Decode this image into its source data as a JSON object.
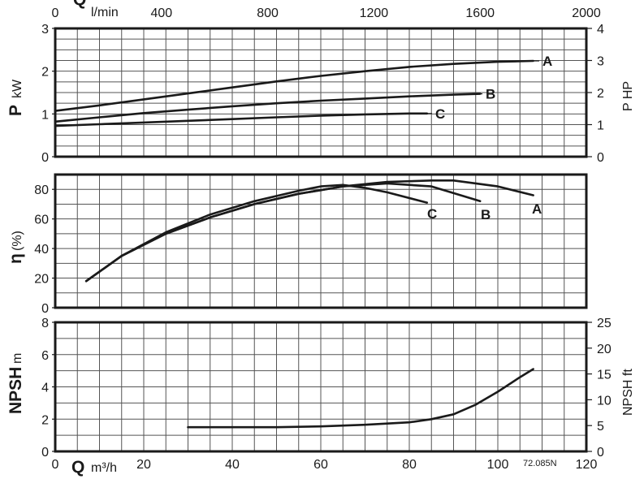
{
  "chart_data": [
    {
      "type": "line",
      "id": "power",
      "ylabel_symbol": "P",
      "ylabel_unit": "kW",
      "ylim": [
        0,
        3
      ],
      "yticks": [
        "0",
        "1",
        "2",
        "3"
      ],
      "right_axis": {
        "label": "P HP",
        "ylim": [
          0,
          4
        ],
        "ticks": [
          "0",
          "1",
          "2",
          "3",
          "4"
        ]
      },
      "top_axis": {
        "symbol": "Q",
        "unit": "l/min",
        "xlim": [
          0,
          2000
        ],
        "ticks": [
          "0",
          "400",
          "800",
          "1200",
          "1600",
          "2000"
        ]
      },
      "grid": true,
      "series": [
        {
          "name": "A",
          "x": [
            0,
            10,
            20,
            30,
            40,
            50,
            60,
            70,
            80,
            90,
            100,
            108
          ],
          "y": [
            1.07,
            1.2,
            1.34,
            1.48,
            1.62,
            1.76,
            1.89,
            2.0,
            2.1,
            2.17,
            2.22,
            2.24
          ]
        },
        {
          "name": "B",
          "x": [
            0,
            10,
            20,
            30,
            40,
            50,
            60,
            70,
            80,
            90,
            96
          ],
          "y": [
            0.82,
            0.92,
            1.02,
            1.1,
            1.18,
            1.25,
            1.31,
            1.36,
            1.41,
            1.45,
            1.47
          ]
        },
        {
          "name": "C",
          "x": [
            0,
            10,
            20,
            30,
            40,
            50,
            60,
            70,
            80,
            84
          ],
          "y": [
            0.72,
            0.76,
            0.8,
            0.84,
            0.88,
            0.92,
            0.96,
            0.99,
            1.01,
            1.01
          ]
        }
      ]
    },
    {
      "type": "line",
      "id": "efficiency",
      "ylabel_symbol": "η",
      "ylabel_unit": "(%)",
      "ylim": [
        0,
        90
      ],
      "yticks": [
        "0",
        "20",
        "40",
        "60",
        "80"
      ],
      "grid": true,
      "series": [
        {
          "name": "A",
          "x": [
            7,
            15,
            25,
            35,
            45,
            55,
            65,
            75,
            85,
            90,
            100,
            108
          ],
          "y": [
            18,
            35,
            50,
            61,
            70,
            77,
            82,
            85,
            86,
            86,
            82,
            76
          ]
        },
        {
          "name": "B",
          "x": [
            7,
            15,
            25,
            35,
            45,
            55,
            65,
            75,
            85,
            96
          ],
          "y": [
            18,
            35,
            50,
            61,
            70,
            77,
            82,
            84,
            82,
            72
          ]
        },
        {
          "name": "C",
          "x": [
            7,
            15,
            25,
            35,
            45,
            55,
            60,
            65,
            70,
            75,
            84
          ],
          "y": [
            18,
            35,
            51,
            63,
            72,
            79,
            82,
            83,
            81,
            78,
            71
          ]
        }
      ]
    },
    {
      "type": "line",
      "id": "npsh",
      "ylabel_symbol": "NPSH",
      "ylabel_unit": "m",
      "ylim": [
        0,
        8
      ],
      "yticks": [
        "0",
        "2",
        "4",
        "6",
        "8"
      ],
      "right_axis": {
        "label": "NPSH ft",
        "ylim": [
          0,
          25
        ],
        "ticks": [
          "0",
          "5",
          "10",
          "15",
          "20",
          "25"
        ]
      },
      "bottom_axis": {
        "symbol": "Q",
        "unit": "m³/h",
        "xlim": [
          0,
          120
        ],
        "ticks": [
          "0",
          "20",
          "40",
          "60",
          "80",
          "100",
          "120"
        ]
      },
      "grid": true,
      "series": [
        {
          "name": "",
          "x": [
            30,
            40,
            50,
            60,
            70,
            80,
            85,
            90,
            95,
            100,
            105,
            108
          ],
          "y": [
            1.5,
            1.5,
            1.5,
            1.55,
            1.65,
            1.8,
            2.0,
            2.3,
            2.9,
            3.7,
            4.6,
            5.1
          ]
        }
      ]
    }
  ],
  "figure_code": "72.085N"
}
